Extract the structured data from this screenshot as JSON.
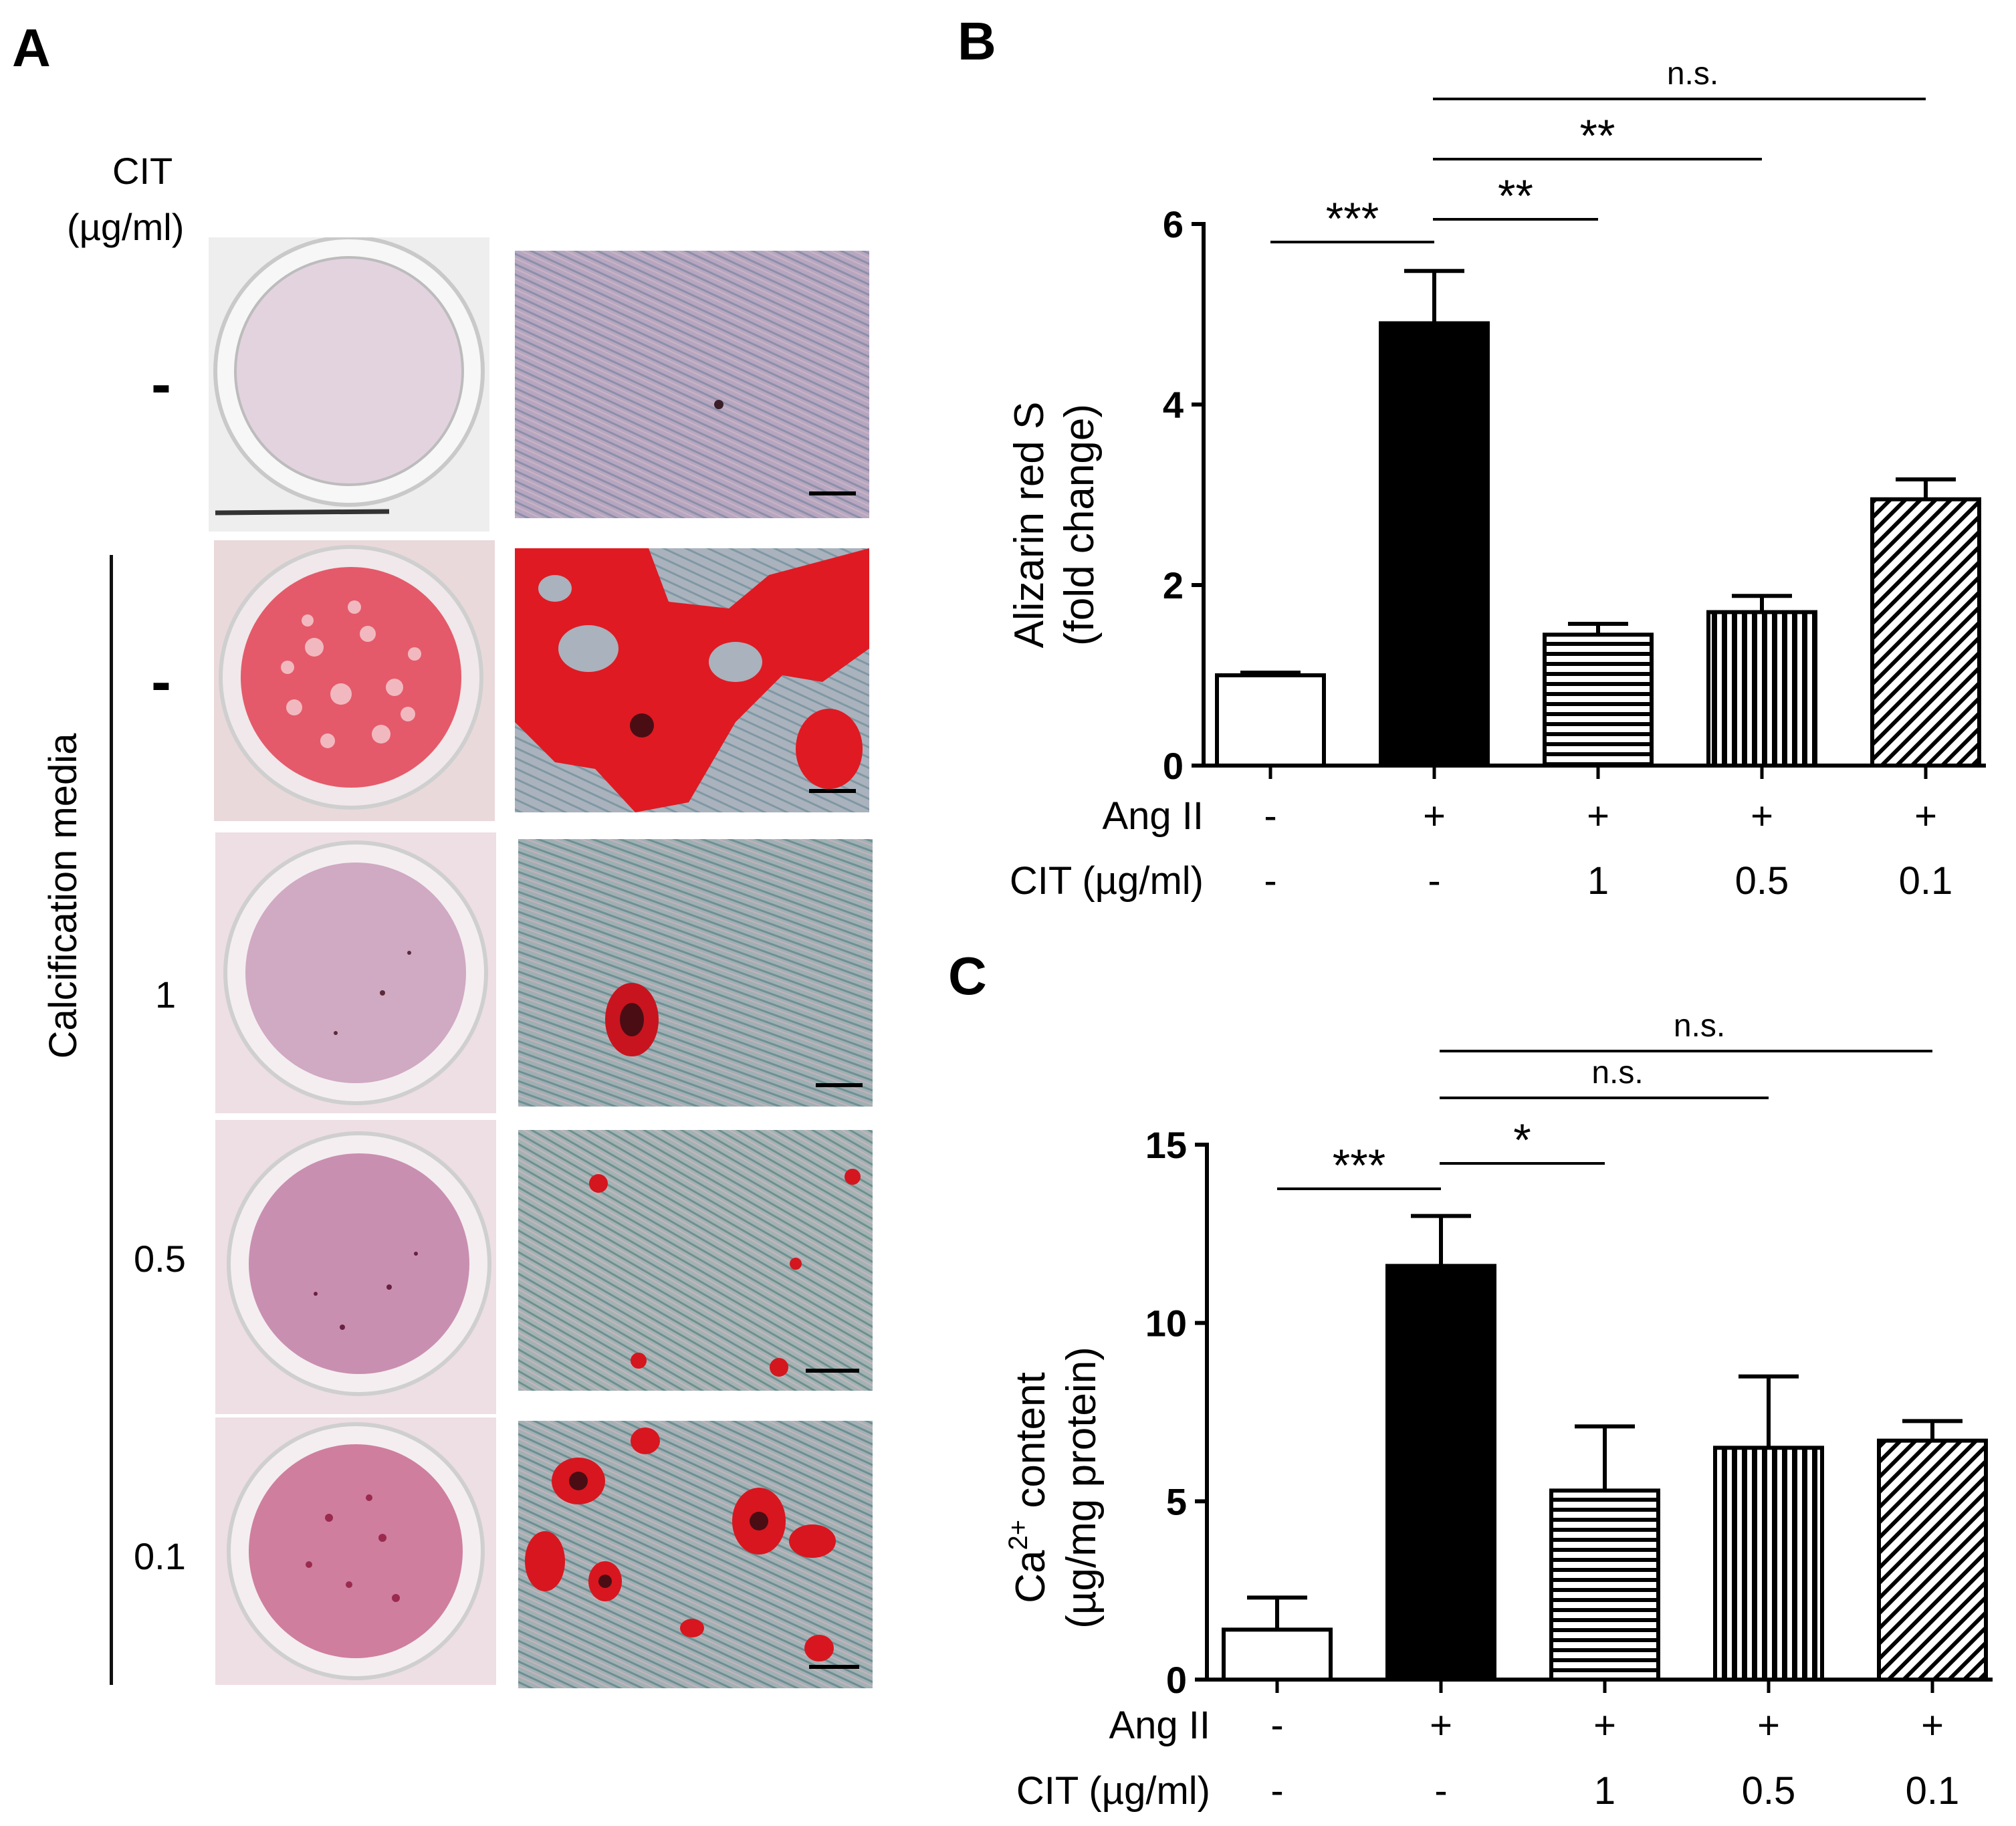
{
  "panel_a": {
    "letter": "A",
    "column_header": [
      "CIT",
      "(µg/ml)"
    ],
    "bracket_label": "Calcification media",
    "row_labels": [
      "-",
      "-",
      "1",
      "0.5",
      "0.1"
    ],
    "row_stain_levels": [
      0.05,
      1.0,
      0.12,
      0.2,
      0.45
    ]
  },
  "chart_data": [
    {
      "letter": "B",
      "type": "bar",
      "title": "",
      "ylabel_lines": [
        "Alizarin red S",
        "(fold change)"
      ],
      "ylim": [
        0,
        6
      ],
      "yticks": [
        "0",
        "2",
        "4",
        "6"
      ],
      "condition_rows": [
        {
          "label": "Ang II",
          "values": [
            "-",
            "+",
            "+",
            "+",
            "+"
          ]
        },
        {
          "label": "CIT (µg/ml)",
          "values": [
            "-",
            "-",
            "1",
            "0.5",
            "0.1"
          ]
        }
      ],
      "bars": [
        {
          "value": 1.0,
          "error": 0.03,
          "pattern": "empty"
        },
        {
          "value": 4.9,
          "error": 0.58,
          "pattern": "solid"
        },
        {
          "value": 1.45,
          "error": 0.12,
          "pattern": "horizontal-lines"
        },
        {
          "value": 1.7,
          "error": 0.18,
          "pattern": "vertical-lines"
        },
        {
          "value": 2.95,
          "error": 0.22,
          "pattern": "diagonal-lines"
        }
      ],
      "significance": [
        {
          "from": 0,
          "to": 1,
          "label": "***"
        },
        {
          "from": 1,
          "to": 2,
          "label": "**"
        },
        {
          "from": 1,
          "to": 3,
          "label": "**"
        },
        {
          "from": 1,
          "to": 4,
          "label": "n.s."
        }
      ]
    },
    {
      "letter": "C",
      "type": "bar",
      "title": "",
      "ylabel_lines": [
        "Ca2+ content",
        "(µg/mg protein)"
      ],
      "ylabel_parts": {
        "base": "Ca",
        "sup": "2+",
        "rest": " content"
      },
      "ylim": [
        0,
        15
      ],
      "yticks": [
        "0",
        "5",
        "10",
        "15"
      ],
      "condition_rows": [
        {
          "label": "Ang II",
          "values": [
            "-",
            "+",
            "+",
            "+",
            "+"
          ]
        },
        {
          "label": "CIT (µg/ml)",
          "values": [
            "-",
            "-",
            "1",
            "0.5",
            "0.1"
          ]
        }
      ],
      "bars": [
        {
          "value": 1.4,
          "error": 0.9,
          "pattern": "empty"
        },
        {
          "value": 11.6,
          "error": 1.4,
          "pattern": "solid"
        },
        {
          "value": 5.3,
          "error": 1.8,
          "pattern": "horizontal-lines"
        },
        {
          "value": 6.5,
          "error": 2.0,
          "pattern": "vertical-lines"
        },
        {
          "value": 6.7,
          "error": 0.55,
          "pattern": "diagonal-lines"
        }
      ],
      "significance": [
        {
          "from": 0,
          "to": 1,
          "label": "***"
        },
        {
          "from": 1,
          "to": 2,
          "label": "*"
        },
        {
          "from": 1,
          "to": 3,
          "label": "n.s."
        },
        {
          "from": 1,
          "to": 4,
          "label": "n.s."
        }
      ]
    }
  ]
}
